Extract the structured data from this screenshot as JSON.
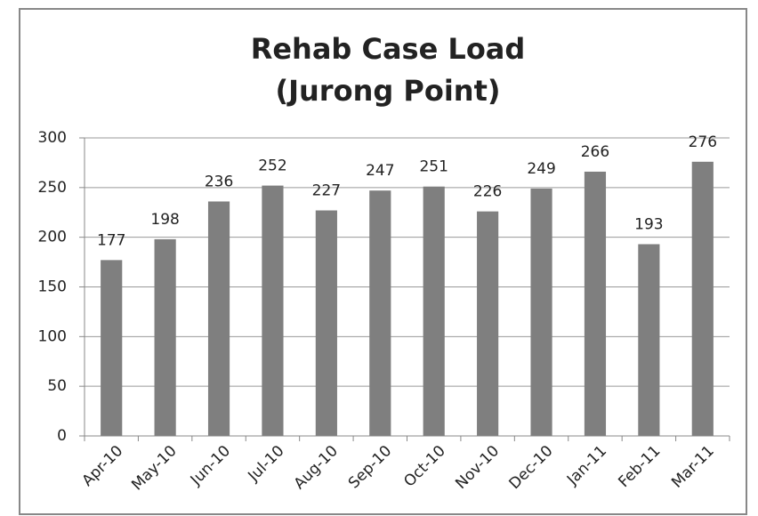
{
  "chart_data": {
    "type": "bar",
    "title": "Rehab Case Load",
    "subtitle": "(Jurong Point)",
    "categories": [
      "Apr-10",
      "May-10",
      "Jun-10",
      "Jul-10",
      "Aug-10",
      "Sep-10",
      "Oct-10",
      "Nov-10",
      "Dec-10",
      "Jan-11",
      "Feb-11",
      "Mar-11"
    ],
    "values": [
      177,
      198,
      236,
      252,
      227,
      247,
      251,
      226,
      249,
      266,
      193,
      276
    ],
    "color": "#7f7f7f",
    "ylim": [
      0,
      300
    ],
    "yticks": [
      0,
      50,
      100,
      150,
      200,
      250,
      300
    ],
    "grid": true
  }
}
